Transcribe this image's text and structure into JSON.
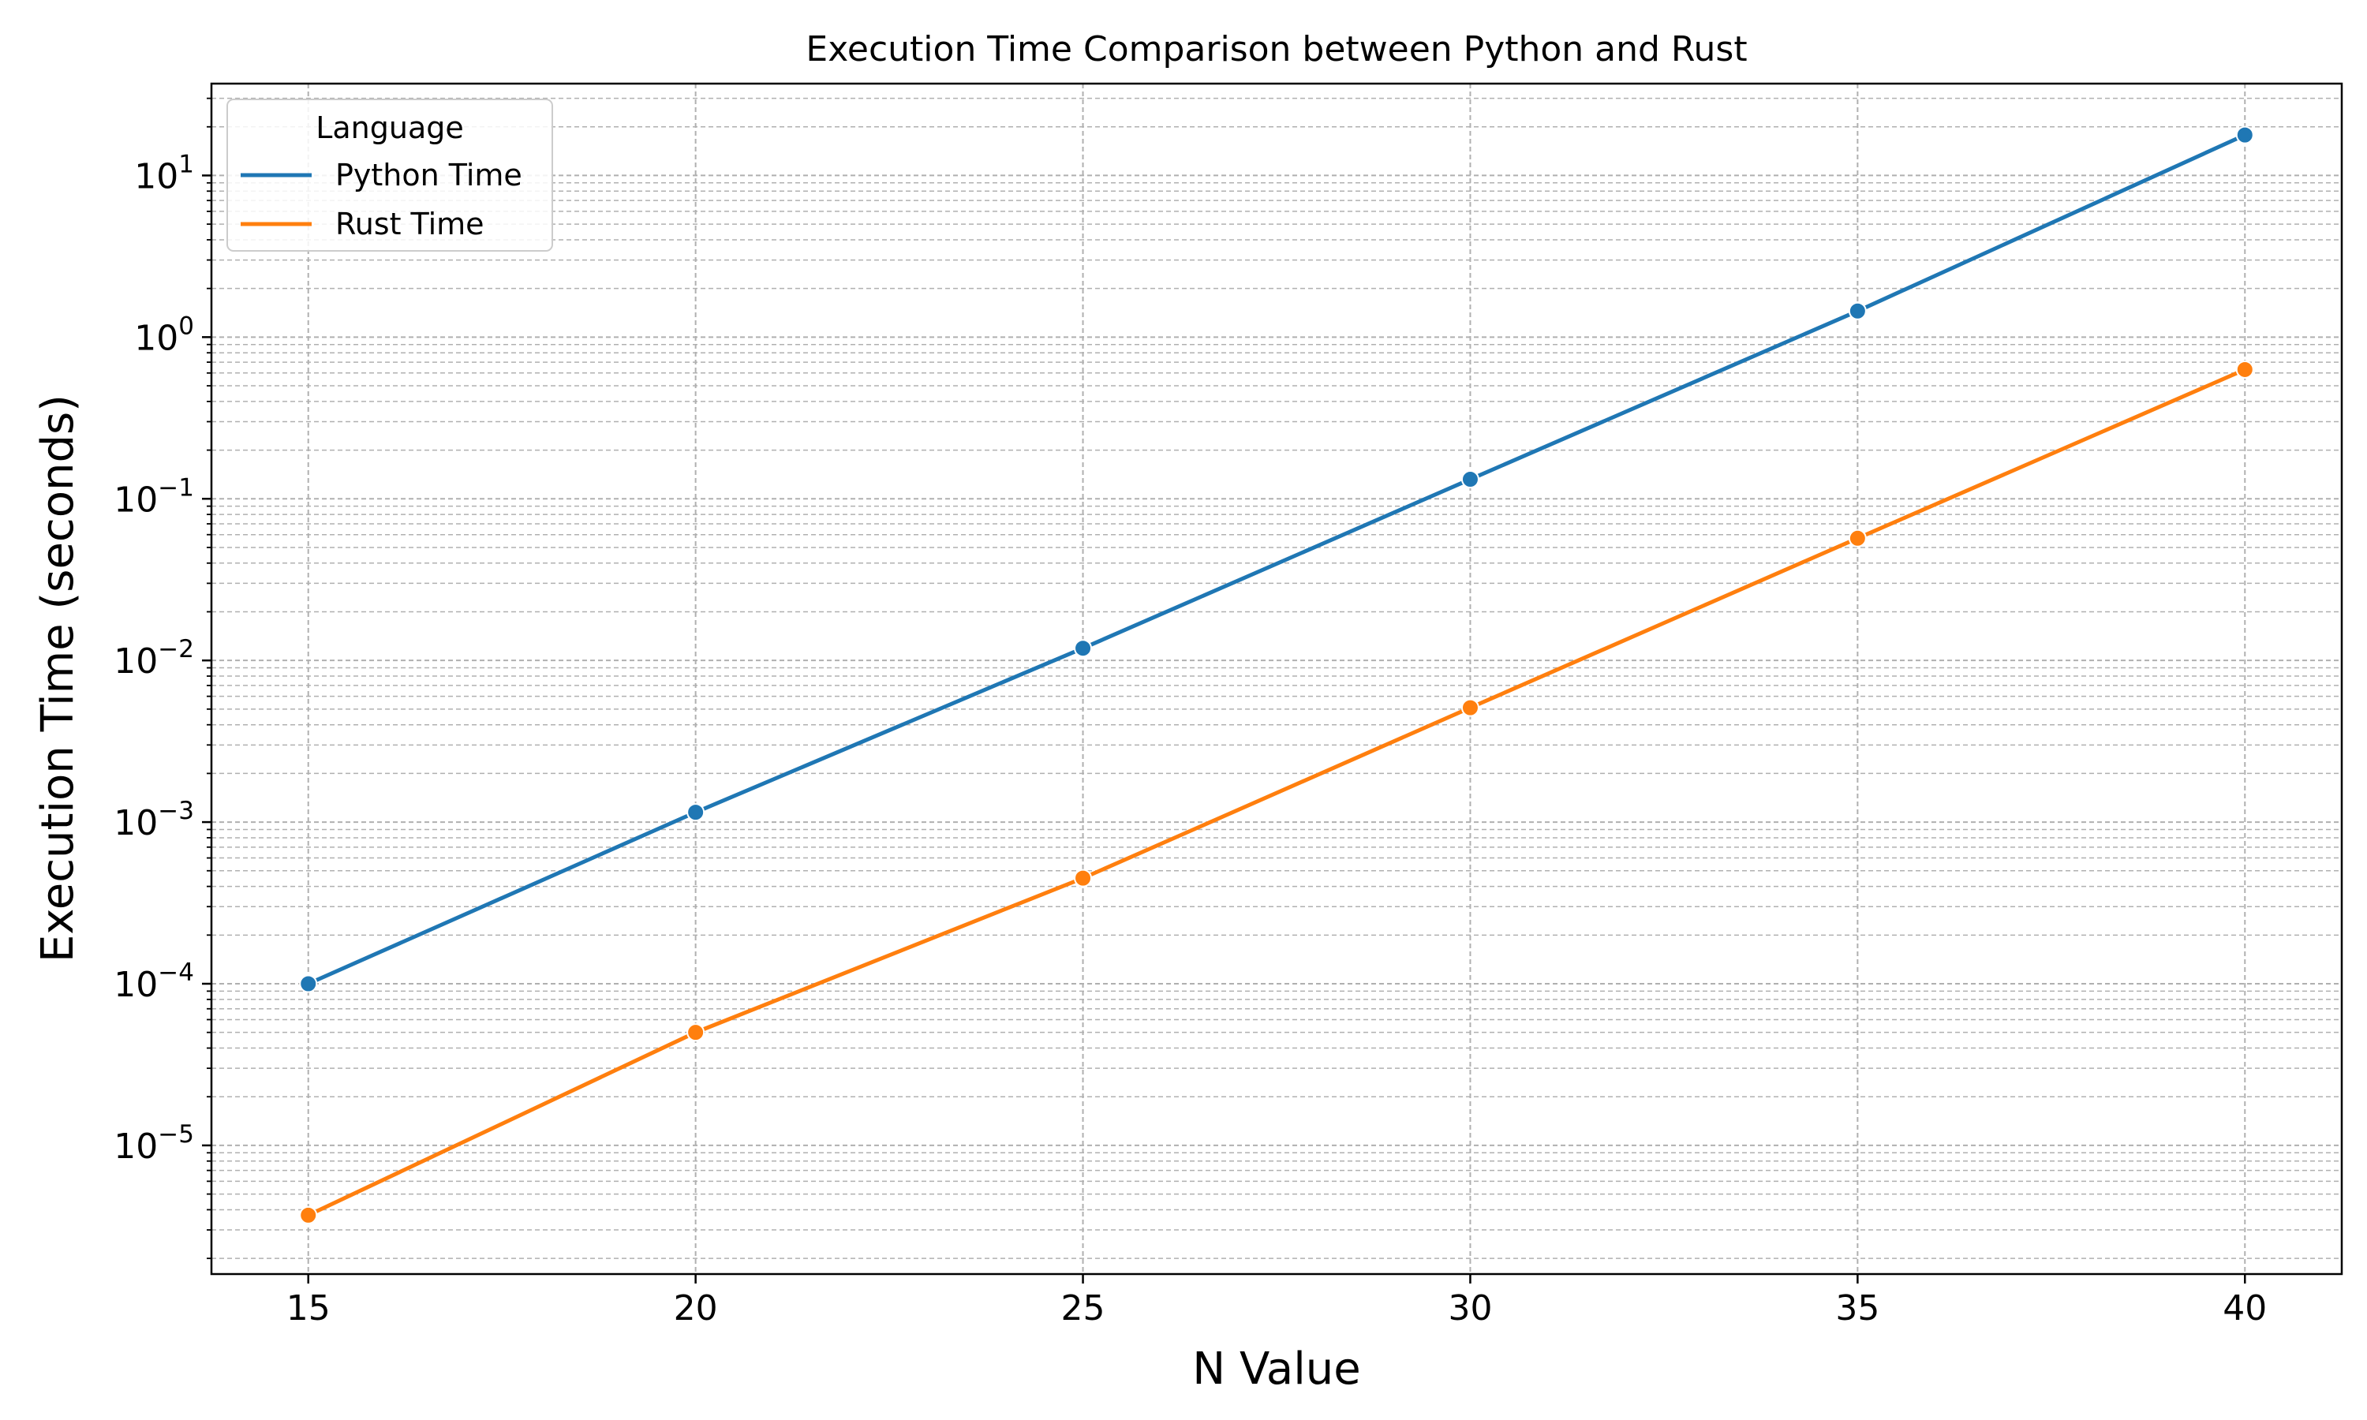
{
  "chart_data": {
    "type": "line",
    "title": "Execution Time Comparison between Python and Rust",
    "xlabel": "N Value",
    "ylabel": "Execution Time (seconds)",
    "x": [
      15,
      20,
      25,
      30,
      35,
      40
    ],
    "xticks": [
      "15",
      "20",
      "25",
      "30",
      "35",
      "40"
    ],
    "xlim": [
      13.75,
      41.25
    ],
    "yscale": "log",
    "ylim": [
      1.6e-06,
      37
    ],
    "yticks": [
      {
        "value": 1e-05,
        "base": "10",
        "exp": "−5"
      },
      {
        "value": 0.0001,
        "base": "10",
        "exp": "−4"
      },
      {
        "value": 0.001,
        "base": "10",
        "exp": "−3"
      },
      {
        "value": 0.01,
        "base": "10",
        "exp": "−2"
      },
      {
        "value": 0.1,
        "base": "10",
        "exp": "−1"
      },
      {
        "value": 1,
        "base": "10",
        "exp": "0"
      },
      {
        "value": 10,
        "base": "10",
        "exp": "1"
      }
    ],
    "grid": true,
    "legend": {
      "title": "Language",
      "position": "top-left"
    },
    "series": [
      {
        "name": "Python Time",
        "color": "#1f77b4",
        "values": [
          0.0001,
          0.00115,
          0.0119,
          0.132,
          1.45,
          17.8
        ]
      },
      {
        "name": "Rust Time",
        "color": "#ff7f0e",
        "values": [
          3.7e-06,
          5e-05,
          0.00045,
          0.0051,
          0.057,
          0.63
        ]
      }
    ]
  }
}
